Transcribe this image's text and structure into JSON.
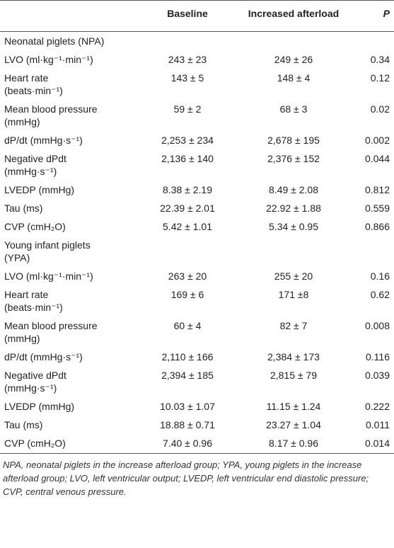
{
  "table": {
    "columns": [
      "",
      "Baseline",
      "Increased afterload",
      "P"
    ],
    "rows": [
      [
        "Neonatal piglets (NPA)"
      ],
      [
        "LVO (ml·kg⁻¹·min⁻¹)",
        "243 ± 23",
        "249 ± 26",
        "0.34"
      ],
      [
        "Heart rate\n(beats·min⁻¹)",
        "143 ± 5",
        "148 ± 4",
        "0.12"
      ],
      [
        "Mean blood pressure\n(mmHg)",
        "59 ± 2",
        "68 ± 3",
        "0.02"
      ],
      [
        "dP/dt (mmHg·s⁻¹)",
        "2,253 ± 234",
        "2,678 ± 195",
        "0.002"
      ],
      [
        "Negative dPdt\n(mmHg·s⁻¹)",
        "2,136 ± 140",
        "2,376 ± 152",
        "0.044"
      ],
      [
        "LVEDP (mmHg)",
        "8.38 ± 2.19",
        "8.49 ± 2.08",
        "0.812"
      ],
      [
        "Tau (ms)",
        "22.39 ± 2.01",
        "22.92 ± 1.88",
        "0.559"
      ],
      [
        "CVP (cmH₂O)",
        "5.42 ± 1.01",
        "5.34 ± 0.95",
        "0.866"
      ],
      [
        "Young infant piglets\n(YPA)"
      ],
      [
        "LVO (ml·kg⁻¹·min⁻¹)",
        "263 ± 20",
        "255 ± 20",
        "0.16"
      ],
      [
        "Heart rate\n(beats·min⁻¹)",
        "169 ± 6",
        "171 ±8",
        "0.62"
      ],
      [
        "Mean blood pressure\n(mmHg)",
        "60 ± 4",
        "82 ± 7",
        "0.008"
      ],
      [
        "dP/dt (mmHg·s⁻¹)",
        "2,110 ± 166",
        "2,384 ± 173",
        "0.116"
      ],
      [
        "Negative dPdt\n(mmHg·s⁻¹)",
        "2,394 ± 185",
        "2,815 ± 79",
        "0.039"
      ],
      [
        "LVEDP (mmHg)",
        "10.03 ± 1.07",
        "11.15 ± 1.24",
        "0.222"
      ],
      [
        "Tau (ms)",
        "18.88 ± 0.71",
        "23.27 ± 1.04",
        "0.011"
      ],
      [
        "CVP (cmH₂O)",
        "7.40 ± 0.96",
        "8.17 ± 0.96",
        "0.014"
      ]
    ]
  },
  "footnote": "NPA, neonatal piglets in the increase afterload group; YPA, young piglets in the increase afterload group; LVO, left ventricular output; LVEDP, left ventricular end diastolic pressure; CVP, central venous pressure."
}
